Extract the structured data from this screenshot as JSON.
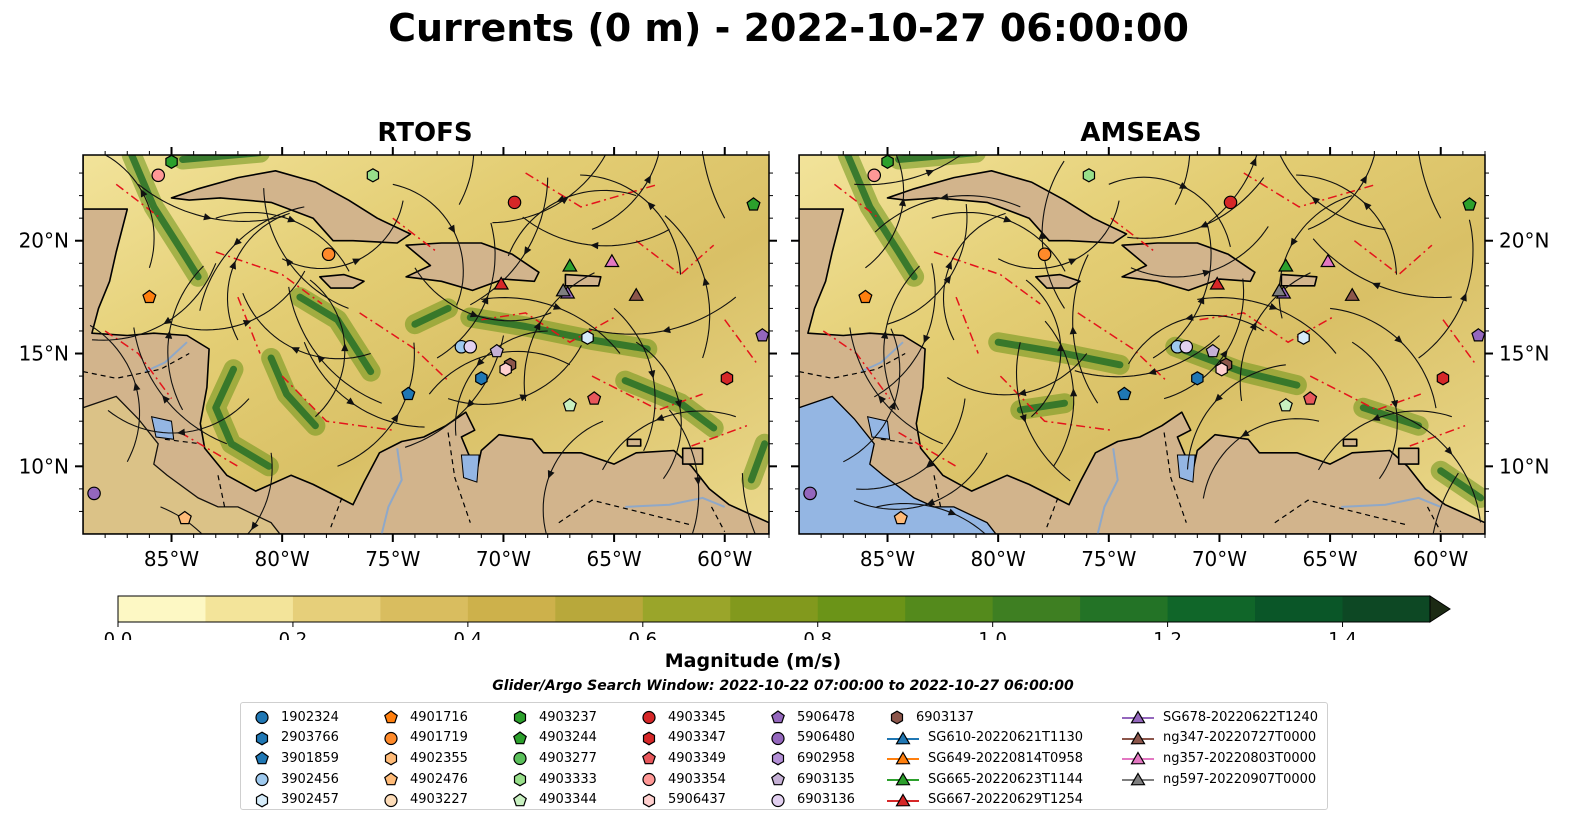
{
  "title": "Currents (0 m) - 2022-10-27 06:00:00",
  "panels": [
    {
      "title": "RTOFS"
    },
    {
      "title": "AMSEAS"
    }
  ],
  "lat_ticks": [
    "20°N",
    "15°N",
    "10°N"
  ],
  "lon_ticks": [
    "85°W",
    "80°W",
    "75°W",
    "70°W",
    "65°W",
    "60°W"
  ],
  "colorbar": {
    "label": "Magnitude (m/s)",
    "ticks": [
      "0.0",
      "0.2",
      "0.4",
      "0.6",
      "0.8",
      "1.0",
      "1.2",
      "1.4"
    ],
    "range": [
      0,
      1.5
    ],
    "extend": "max",
    "colors": [
      "#fdf8c4",
      "#f3e49a",
      "#e6cf7a",
      "#d9bd5f",
      "#cdb14b",
      "#b8a83b",
      "#9aa52a",
      "#82991d",
      "#6b9418",
      "#548a1c",
      "#3e7f22",
      "#237326",
      "#106629",
      "#0a5628",
      "#0d4824",
      "#123a1e",
      "#172f18",
      "#1c2a14"
    ]
  },
  "search_window": "Glider/Argo Search Window: 2022-10-22 07:00:00 to 2022-10-27 06:00:00",
  "legend": [
    [
      {
        "label": "1902324",
        "marker": "circle",
        "color": "#1f77b4"
      },
      {
        "label": "2903766",
        "marker": "hexagon",
        "color": "#1f77b4"
      },
      {
        "label": "3901859",
        "marker": "pentagon",
        "color": "#1f77b4"
      },
      {
        "label": "3902456",
        "marker": "circle",
        "color": "#9ec9ee"
      },
      {
        "label": "3902457",
        "marker": "hexagon",
        "color": "#d6ecfa"
      }
    ],
    [
      {
        "label": "4901716",
        "marker": "pentagon",
        "color": "#ff7f0e"
      },
      {
        "label": "4901719",
        "marker": "circle",
        "color": "#ff8a2a"
      },
      {
        "label": "4902355",
        "marker": "hexagon",
        "color": "#ffbb78"
      },
      {
        "label": "4902476",
        "marker": "pentagon",
        "color": "#ffbb78"
      },
      {
        "label": "4903227",
        "marker": "circle",
        "color": "#fddcb8"
      }
    ],
    [
      {
        "label": "4903237",
        "marker": "hexagon",
        "color": "#2ca02c"
      },
      {
        "label": "4903244",
        "marker": "pentagon",
        "color": "#2ca02c"
      },
      {
        "label": "4903277",
        "marker": "circle",
        "color": "#5bc05b"
      },
      {
        "label": "4903333",
        "marker": "hexagon",
        "color": "#98df8a"
      },
      {
        "label": "4903344",
        "marker": "pentagon",
        "color": "#c8f0c0"
      }
    ],
    [
      {
        "label": "4903345",
        "marker": "circle",
        "color": "#d62728"
      },
      {
        "label": "4903347",
        "marker": "hexagon",
        "color": "#d62728"
      },
      {
        "label": "4903349",
        "marker": "pentagon",
        "color": "#e8575b"
      },
      {
        "label": "4903354",
        "marker": "circle",
        "color": "#ff9896"
      },
      {
        "label": "5906437",
        "marker": "hexagon",
        "color": "#ffd0cf"
      }
    ],
    [
      {
        "label": "5906478",
        "marker": "pentagon",
        "color": "#9467bd"
      },
      {
        "label": "5906480",
        "marker": "circle",
        "color": "#9467bd"
      },
      {
        "label": "6902958",
        "marker": "hexagon",
        "color": "#b38fd6"
      },
      {
        "label": "6903135",
        "marker": "pentagon",
        "color": "#c5b0d5"
      },
      {
        "label": "6903136",
        "marker": "circle",
        "color": "#e2d0f0"
      }
    ],
    [
      {
        "label": "6903137",
        "marker": "hexagon",
        "color": "#8c564b"
      },
      {
        "label": "SG610-20220621T1130",
        "marker": "triangle",
        "color": "#1f77b4"
      },
      {
        "label": "SG649-20220814T0958",
        "marker": "triangle",
        "color": "#ff7f0e"
      },
      {
        "label": "SG665-20220623T1144",
        "marker": "triangle",
        "color": "#2ca02c"
      },
      {
        "label": "SG667-20220629T1254",
        "marker": "triangle",
        "color": "#d62728"
      }
    ],
    [
      {
        "label": "SG678-20220622T1240",
        "marker": "triangle",
        "color": "#9467bd"
      },
      {
        "label": "ng347-20220727T0000",
        "marker": "triangle",
        "color": "#8c564b"
      },
      {
        "label": "ng357-20220803T0000",
        "marker": "triangle",
        "color": "#e377c2"
      },
      {
        "label": "ng597-20220907T0000",
        "marker": "triangle",
        "color": "#7f7f7f"
      }
    ]
  ],
  "markers": [
    {
      "label": "4903237",
      "lon": -85.0,
      "lat": 23.5
    },
    {
      "label": "4903354",
      "lon": -85.6,
      "lat": 22.9
    },
    {
      "label": "4903333",
      "lon": -75.9,
      "lat": 22.9
    },
    {
      "label": "4903345",
      "lon": -69.5,
      "lat": 21.7
    },
    {
      "label": "4903244",
      "lon": -58.7,
      "lat": 21.6
    },
    {
      "label": "4901719",
      "lon": -77.9,
      "lat": 19.4
    },
    {
      "label": "4901716",
      "lon": -86.0,
      "lat": 17.5
    },
    {
      "label": "SG665-20220623T1144",
      "lon": -67.0,
      "lat": 18.9
    },
    {
      "label": "ng357-20220803T0000",
      "lon": -65.1,
      "lat": 19.1
    },
    {
      "label": "SG667-20220629T1254",
      "lon": -70.1,
      "lat": 18.1
    },
    {
      "label": "SG678-20220622T1240",
      "lon": -67.1,
      "lat": 17.7
    },
    {
      "label": "ng597-20220907T0000",
      "lon": -67.3,
      "lat": 17.8
    },
    {
      "label": "ng347-20220727T0000",
      "lon": -64.0,
      "lat": 17.6
    },
    {
      "label": "3902457",
      "lon": -66.2,
      "lat": 15.7
    },
    {
      "label": "5906478",
      "lon": -58.3,
      "lat": 15.8
    },
    {
      "label": "3902456",
      "lon": -71.9,
      "lat": 15.3
    },
    {
      "label": "6903136",
      "lon": -71.5,
      "lat": 15.3
    },
    {
      "label": "6903135",
      "lon": -70.3,
      "lat": 15.1
    },
    {
      "label": "6903137",
      "lon": -69.7,
      "lat": 14.5
    },
    {
      "label": "2903766",
      "lon": -71.0,
      "lat": 13.9
    },
    {
      "label": "5906437",
      "lon": -69.9,
      "lat": 14.3
    },
    {
      "label": "3901859",
      "lon": -74.3,
      "lat": 13.2
    },
    {
      "label": "4903347",
      "lon": -59.9,
      "lat": 13.9
    },
    {
      "label": "4903349",
      "lon": -65.9,
      "lat": 13.0
    },
    {
      "label": "4903344",
      "lon": -67.0,
      "lat": 12.7
    },
    {
      "label": "5906480",
      "lon": -88.5,
      "lat": 8.8
    },
    {
      "label": "4902476",
      "lon": -84.4,
      "lat": 7.7
    }
  ]
}
